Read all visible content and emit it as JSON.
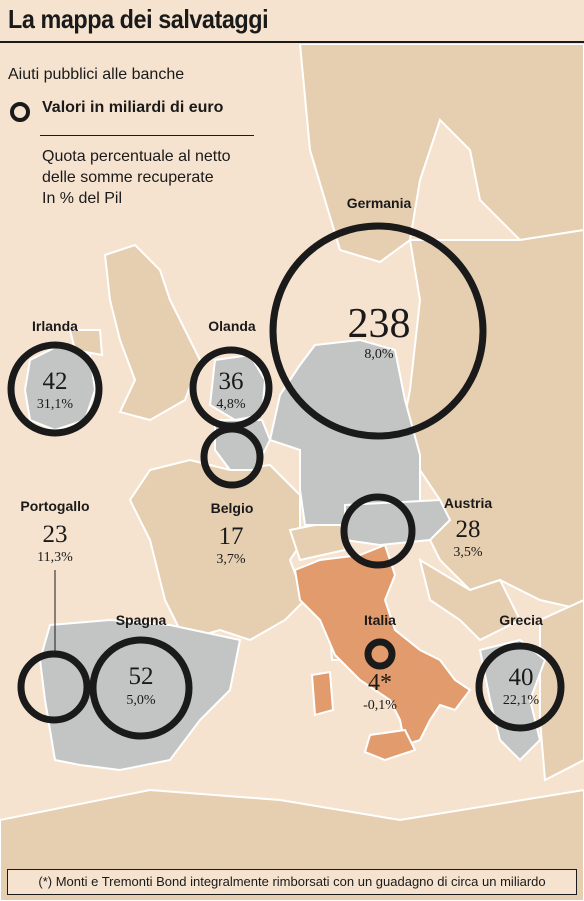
{
  "title": "La mappa dei salvataggi",
  "legend": {
    "subtitle": "Aiuti pubblici alle banche",
    "values_label": "Valori in miliardi di euro",
    "pct_lines": [
      "Quota percentuale al netto",
      "delle somme recuperate",
      "In % del Pil"
    ]
  },
  "countries": {
    "germania": {
      "name": "Germania",
      "value": "238",
      "pct": "8,0%"
    },
    "irlanda": {
      "name": "Irlanda",
      "value": "42",
      "pct": "31,1%"
    },
    "olanda": {
      "name": "Olanda",
      "value": "36",
      "pct": "4,8%"
    },
    "portogallo": {
      "name": "Portogallo",
      "value": "23",
      "pct": "11,3%"
    },
    "belgio": {
      "name": "Belgio",
      "value": "17",
      "pct": "3,7%"
    },
    "austria": {
      "name": "Austria",
      "value": "28",
      "pct": "3,5%"
    },
    "spagna": {
      "name": "Spagna",
      "value": "52",
      "pct": "5,0%"
    },
    "italia": {
      "name": "Italia",
      "value": "4*",
      "pct": "-0,1%"
    },
    "grecia": {
      "name": "Grecia",
      "value": "40",
      "pct": "22,1%"
    }
  },
  "footnote": "(*) Monti e Tremonti Bond integralmente rimborsati con un guadagno di circa un miliardo",
  "colors": {
    "background": "#f5e3cf",
    "land": "#e6ceb0",
    "rescued_country": "#c3c5c4",
    "italy": "#e29b6c",
    "border": "#ffffff",
    "circle": "#1a1a1a"
  }
}
